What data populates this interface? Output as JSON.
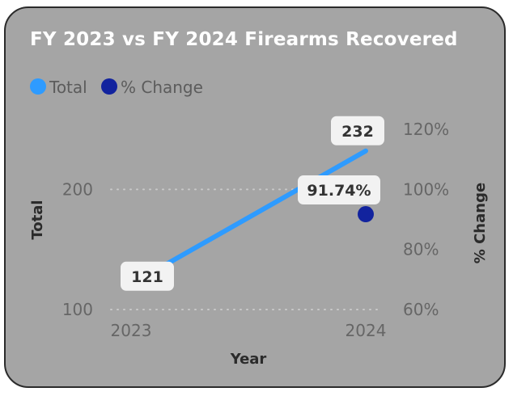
{
  "chart_data": {
    "type": "line",
    "title": "FY 2023 vs FY 2024 Firearms Recovered",
    "xlabel": "Year",
    "ylabel": "Total",
    "y2label": "% Change",
    "categories": [
      "2023",
      "2024"
    ],
    "series": [
      {
        "name": "Total",
        "type": "line",
        "axis": "left",
        "values": [
          121,
          232
        ],
        "data_labels": [
          "121",
          "232"
        ],
        "color": "#2e9bff"
      },
      {
        "name": "% Change",
        "type": "scatter",
        "axis": "right",
        "values": [
          null,
          91.74
        ],
        "data_labels": [
          "",
          "91.74%"
        ],
        "color": "#12239e"
      }
    ],
    "y_ticks": [
      "100",
      "200"
    ],
    "y2_ticks": [
      "60%",
      "80%",
      "100%",
      "120%"
    ],
    "ylim": [
      100,
      250
    ],
    "y2lim": [
      60,
      120
    ],
    "grid": true,
    "legend_position": "top-left"
  }
}
